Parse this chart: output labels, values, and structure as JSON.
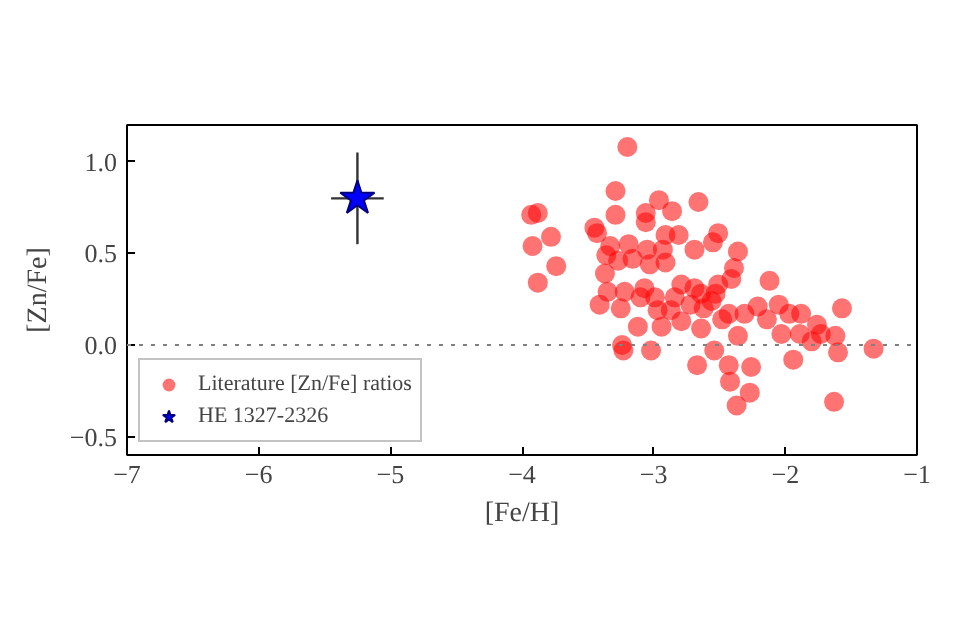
{
  "chart_data": {
    "type": "scatter",
    "xlabel": "[Fe/H]",
    "ylabel": "[Zn/Fe]",
    "xlim": [
      -7,
      -1
    ],
    "ylim": [
      -0.6,
      1.2
    ],
    "xticks": [
      {
        "value": -7,
        "label": "−7"
      },
      {
        "value": -6,
        "label": "−6"
      },
      {
        "value": -5,
        "label": "−5"
      },
      {
        "value": -4,
        "label": "−4"
      },
      {
        "value": -3,
        "label": "−3"
      },
      {
        "value": -2,
        "label": "−2"
      },
      {
        "value": -1,
        "label": "−1"
      }
    ],
    "yticks": [
      {
        "value": -0.5,
        "label": "−0.5"
      },
      {
        "value": 0,
        "label": "0.0"
      },
      {
        "value": 0.5,
        "label": "0.5"
      },
      {
        "value": 1,
        "label": "1.0"
      }
    ],
    "grid": false,
    "legend": "bottom left",
    "ref_lines": [
      {
        "axis": "y",
        "value": 0,
        "line_style": "dotted",
        "color": "#808080"
      }
    ],
    "series": [
      {
        "name": "Literature [Zn/Fe] ratios",
        "color": "#ff0000",
        "marker": "circle",
        "x": [
          -3.2,
          -3.93,
          -3.88,
          -3.92,
          -3.78,
          -3.88,
          -3.74,
          -3.29,
          -2.96,
          -2.66,
          -3.29,
          -3.06,
          -2.86,
          -3.06,
          -3.45,
          -3.43,
          -2.91,
          -2.81,
          -2.51,
          -2.55,
          -3.33,
          -3.19,
          -3.36,
          -3.27,
          -3.16,
          -3.05,
          -2.93,
          -2.69,
          -2.36,
          -3.37,
          -3.03,
          -2.91,
          -2.39,
          -2.41,
          -2.12,
          -3.35,
          -3.41,
          -3.25,
          -3.22,
          -3.07,
          -3.1,
          -2.99,
          -2.84,
          -2.79,
          -2.69,
          -2.64,
          -2.53,
          -2.51,
          -2.97,
          -2.87,
          -2.72,
          -2.62,
          -2.56,
          -2.43,
          -2.31,
          -2.21,
          -2.05,
          -1.97,
          -1.88,
          -1.76,
          -1.57,
          -3.12,
          -2.94,
          -2.79,
          -2.64,
          -2.48,
          -2.36,
          -2.14,
          -2.03,
          -1.89,
          -1.8,
          -1.73,
          -1.62,
          -3.24,
          -3.23,
          -3.02,
          -2.54,
          -1.6,
          -1.33,
          -2.67,
          -2.43,
          -2.26,
          -1.94,
          -2.42,
          -2.27,
          -2.37,
          -1.63
        ],
        "values": [
          1.08,
          0.71,
          0.72,
          0.54,
          0.59,
          0.34,
          0.43,
          0.84,
          0.79,
          0.78,
          0.71,
          0.72,
          0.73,
          0.67,
          0.64,
          0.61,
          0.6,
          0.6,
          0.61,
          0.56,
          0.54,
          0.55,
          0.49,
          0.46,
          0.47,
          0.52,
          0.52,
          0.52,
          0.51,
          0.39,
          0.44,
          0.45,
          0.42,
          0.36,
          0.35,
          0.29,
          0.22,
          0.2,
          0.29,
          0.31,
          0.26,
          0.26,
          0.26,
          0.33,
          0.31,
          0.28,
          0.28,
          0.33,
          0.19,
          0.19,
          0.22,
          0.2,
          0.24,
          0.17,
          0.17,
          0.21,
          0.22,
          0.17,
          0.17,
          0.11,
          0.2,
          0.1,
          0.1,
          0.13,
          0.09,
          0.14,
          0.05,
          0.14,
          0.06,
          0.06,
          0.02,
          0.06,
          0.05,
          0.0,
          -0.03,
          -0.03,
          -0.03,
          -0.04,
          -0.02,
          -0.11,
          -0.11,
          -0.12,
          -0.08,
          -0.2,
          -0.26,
          -0.33,
          -0.31
        ]
      },
      {
        "name": "HE 1327-2326",
        "color": "#0000ff",
        "marker": "star",
        "x": [
          -5.25
        ],
        "values": [
          0.8
        ],
        "errors": [
          0.25
        ],
        "xerrors": [
          0.2
        ]
      }
    ]
  }
}
